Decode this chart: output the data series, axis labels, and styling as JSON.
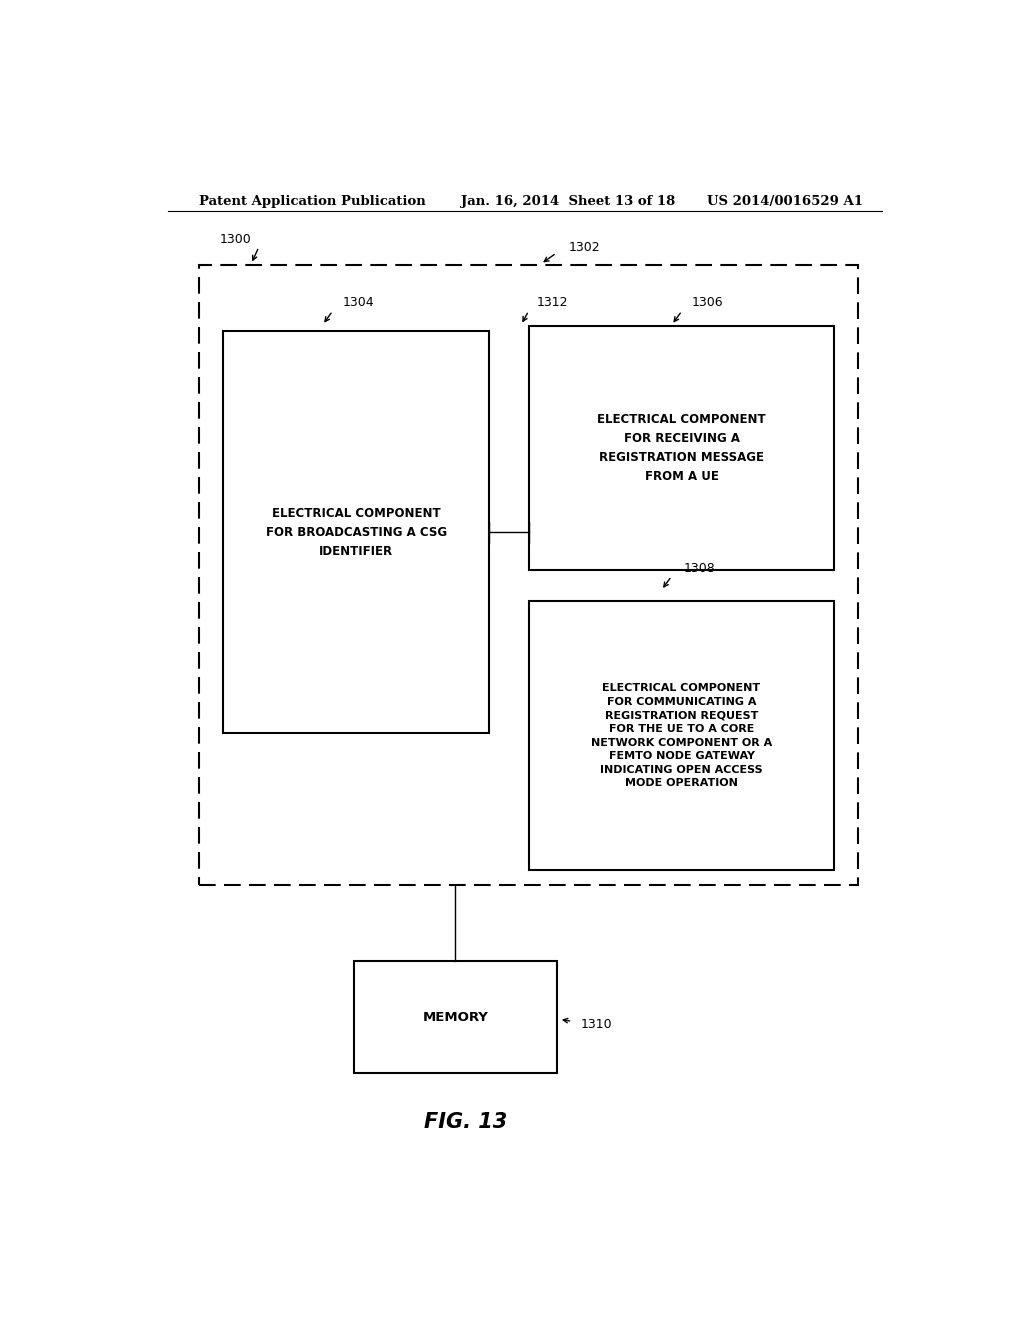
{
  "bg_color": "#ffffff",
  "text_color": "#000000",
  "header_text": "Patent Application Publication",
  "header_date": "Jan. 16, 2014  Sheet 13 of 18",
  "header_patent": "US 2014/0016529 A1",
  "fig_label": "FIG. 13",
  "box1304_text": "ELECTRICAL COMPONENT\nFOR BROADCASTING A CSG\nIDENTIFIER",
  "box1306_text": "ELECTRICAL COMPONENT\nFOR RECEIVING A\nREGISTRATION MESSAGE\nFROM A UE",
  "box1308_text": "ELECTRICAL COMPONENT\nFOR COMMUNICATING A\nREGISTRATION REQUEST\nFOR THE UE TO A CORE\nNETWORK COMPONENT OR A\nFEMTO NODE GATEWAY\nINDICATING OPEN ACCESS\nMODE OPERATION",
  "memory_text": "MEMORY",
  "label_1300": "1300",
  "label_1302": "1302",
  "label_1304": "1304",
  "label_1306": "1306",
  "label_1308": "1308",
  "label_1310": "1310",
  "label_1312": "1312"
}
